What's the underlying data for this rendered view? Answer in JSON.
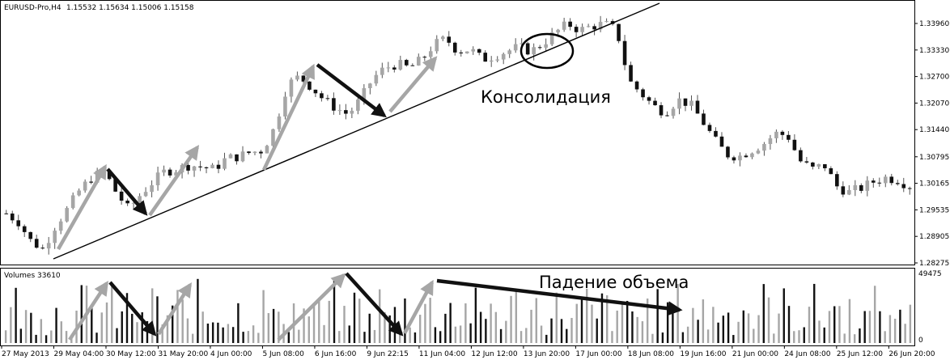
{
  "header": {
    "symbol": "EURUSD-Pro,H4",
    "ohlc": "1.15532 1.15634 1.15006 1.15158"
  },
  "volume_panel": {
    "label": "Volumes 33610",
    "max_label": "49475",
    "min_label": "0"
  },
  "annotations": {
    "consolidation": "Консолидация",
    "volume_drop": "Падение объема"
  },
  "chart_data": [
    {
      "type": "candlestick",
      "title": "EURUSD-Pro,H4",
      "y_ticks": [
        "1.33960",
        "1.33330",
        "1.32700",
        "1.32070",
        "1.31440",
        "1.30795",
        "1.30165",
        "1.29535",
        "1.28905",
        "1.28275"
      ],
      "ylim": [
        1.28275,
        1.3425
      ],
      "x_ticks": [
        "27 May 2013",
        "29 May 04:00",
        "30 May 12:00",
        "31 May 20:00",
        "4 Jun 00:00",
        "5 Jun 08:00",
        "6 Jun 16:00",
        "9 Jun 22:15",
        "11 Jun 04:00",
        "12 Jun 12:00",
        "13 Jun 20:00",
        "17 Jun 00:00",
        "18 Jun 08:00",
        "19 Jun 16:00",
        "21 Jun 00:00",
        "24 Jun 08:00",
        "25 Jun 12:00",
        "26 Jun 20:00"
      ],
      "close_path": [
        1.2945,
        1.2925,
        1.288,
        1.286,
        1.2915,
        1.2955,
        1.3,
        1.303,
        1.3045,
        1.2995,
        1.2955,
        1.299,
        1.302,
        1.3045,
        1.305,
        1.306,
        1.3055,
        1.305,
        1.3075,
        1.308,
        1.309,
        1.3095,
        1.315,
        1.325,
        1.327,
        1.3245,
        1.3215,
        1.3195,
        1.318,
        1.3215,
        1.3265,
        1.329,
        1.33,
        1.329,
        1.331,
        1.3345,
        1.336,
        1.333,
        1.3335,
        1.331,
        1.332,
        1.333,
        1.334,
        1.333,
        1.335,
        1.3375,
        1.3395,
        1.338,
        1.339,
        1.3395,
        1.338,
        1.326,
        1.323,
        1.32,
        1.3185,
        1.3215,
        1.3205,
        1.3165,
        1.312,
        1.3085,
        1.308,
        1.3095,
        1.311,
        1.3135,
        1.313,
        1.307,
        1.305,
        1.306,
        1.301,
        1.2995,
        1.3005,
        1.302,
        1.303,
        1.3025,
        1.301
      ]
    },
    {
      "type": "bar",
      "title": "Volumes 33610",
      "ylim": [
        0,
        49475
      ],
      "count": 180,
      "values_pattern": "spiky tick volume, roughly 5000-45000"
    }
  ]
}
